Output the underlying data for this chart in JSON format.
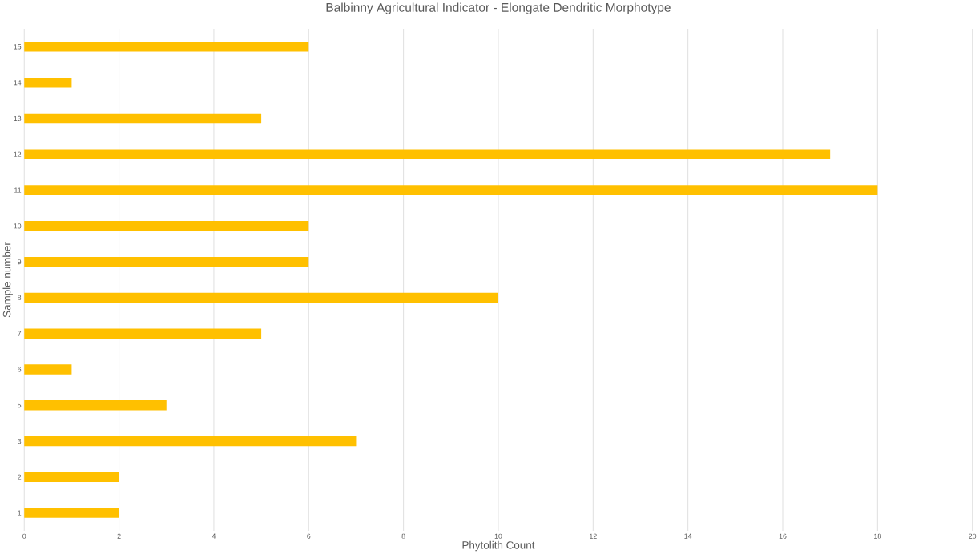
{
  "chart_data": {
    "type": "bar",
    "orientation": "horizontal",
    "title": "Balbinny Agricultural Indicator - Elongate Dendritic Morphotype",
    "xlabel": "Phytolith Count",
    "ylabel": "Sample number",
    "categories": [
      "15",
      "14",
      "13",
      "12",
      "11",
      "10",
      "9",
      "8",
      "7",
      "6",
      "5",
      "3",
      "2",
      "1"
    ],
    "values": [
      6,
      1,
      5,
      17,
      18,
      6,
      6,
      10,
      5,
      1,
      3,
      7,
      2,
      2
    ],
    "color": "#ffc000",
    "xlim": [
      0,
      20
    ],
    "xticks": [
      0,
      2,
      4,
      6,
      8,
      10,
      12,
      14,
      16,
      18,
      20
    ],
    "grid": "x"
  }
}
